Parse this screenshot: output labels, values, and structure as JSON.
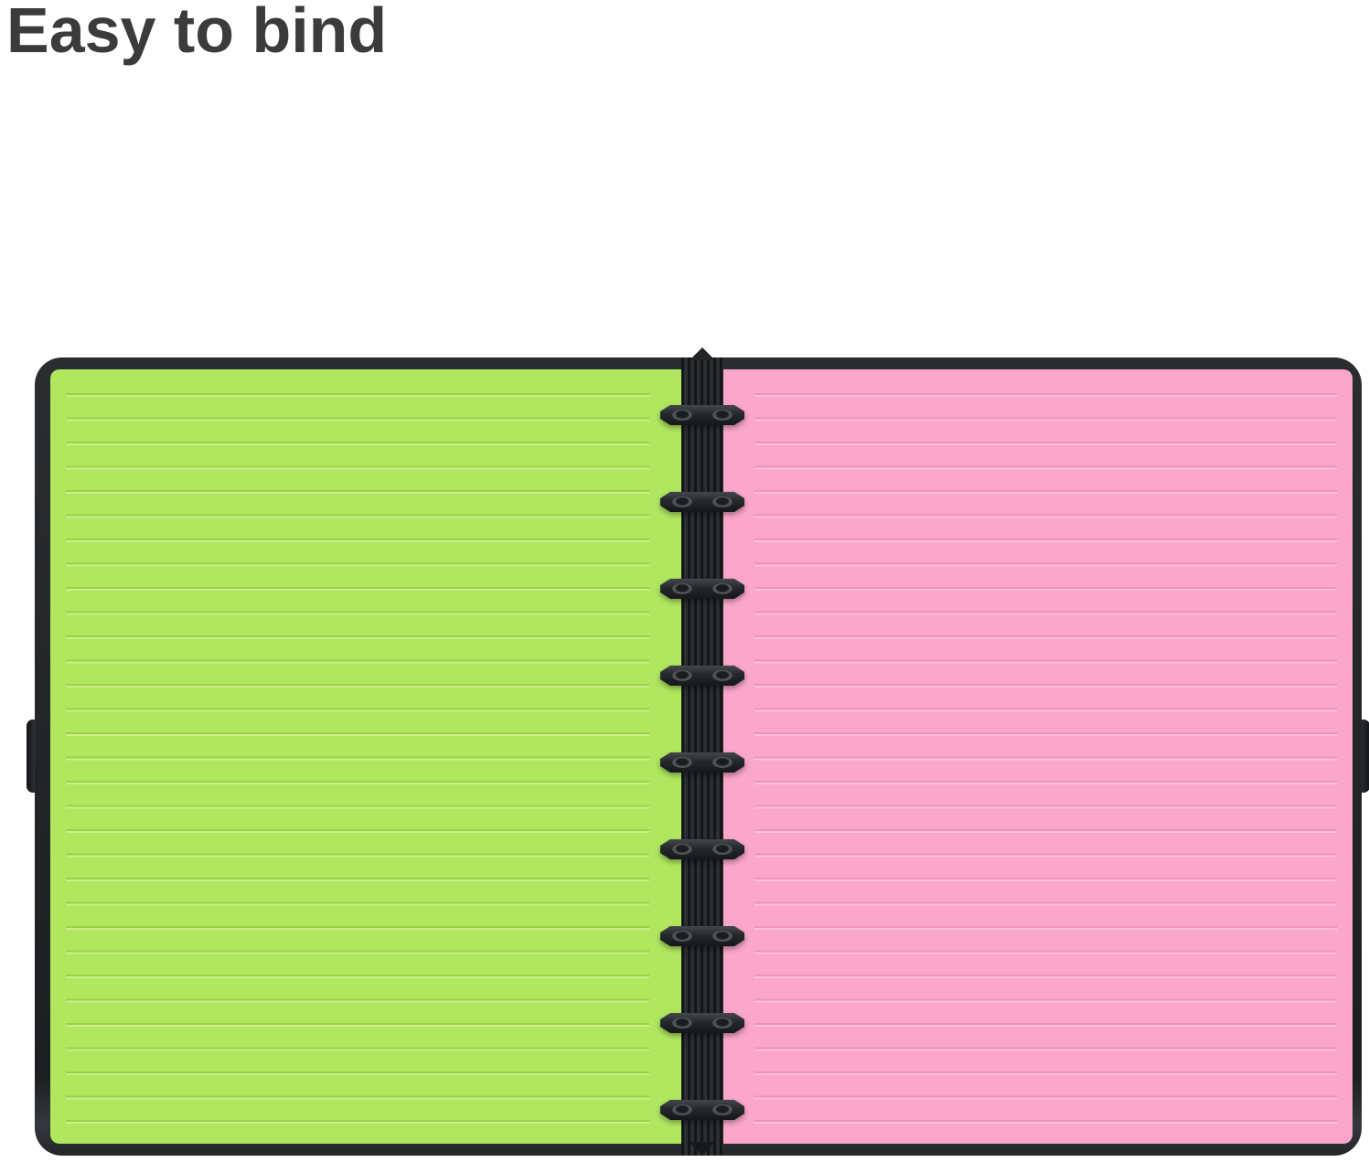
{
  "header": {
    "title": "Easy to bind"
  },
  "product_image": {
    "description": "Open disc-bound notebook with a green lined page on the left and a pink lined page on the right, held by a black disc binding spine",
    "left_page": {
      "paper": "ruled",
      "color_name": "green"
    },
    "right_page": {
      "paper": "ruled",
      "color_name": "pink"
    },
    "binding": {
      "type": "disc-binding",
      "disc_count": 9,
      "tabs": [
        "left-cover-elastic-tab",
        "right-cover-elastic-tab"
      ]
    }
  },
  "colors": {
    "background": "#ffffff",
    "title_text": "#3b3b3c",
    "cover_black": "#222427",
    "spine_dark": "#2b2e32",
    "page_green": "#b0e75f",
    "line_green": "#9bd244",
    "page_pink": "#fba6cb",
    "line_pink": "#ef93bb",
    "disc_black": "#25282b",
    "rivet_gray": "#5a5d60"
  }
}
